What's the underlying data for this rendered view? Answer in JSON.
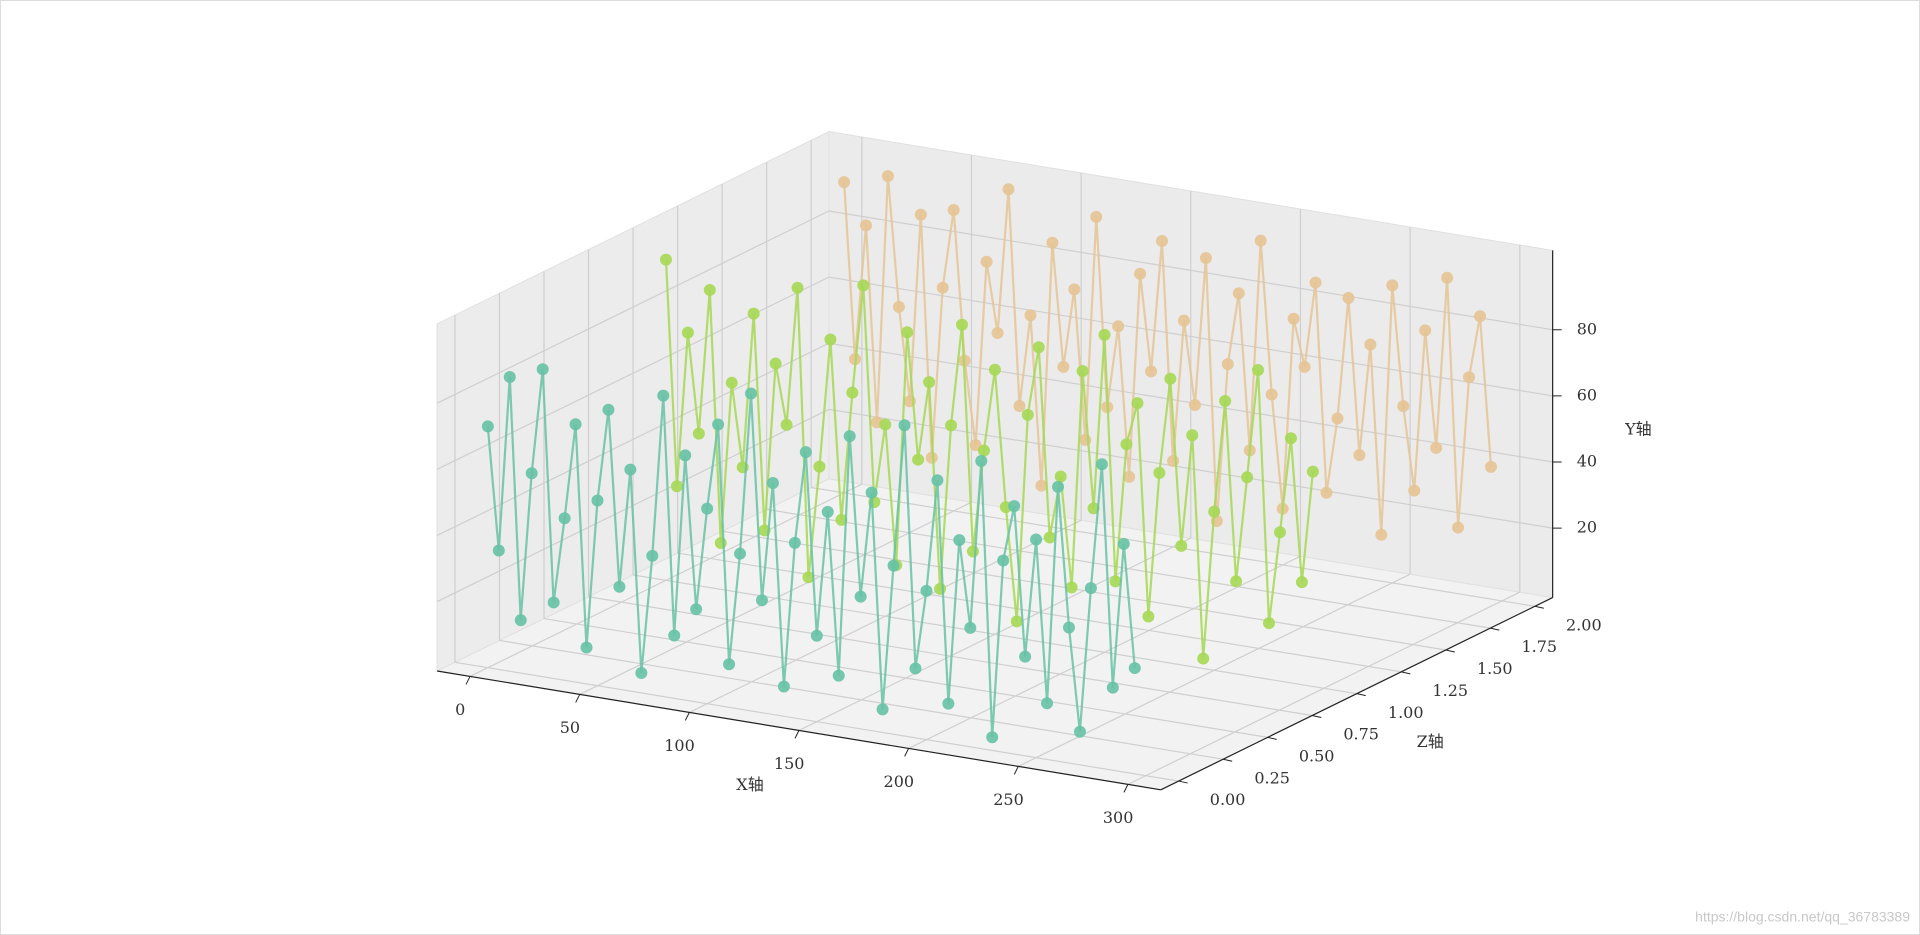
{
  "chart_data": {
    "type": "line3d",
    "xlabel": "X轴",
    "ylabel": "Y轴",
    "zlabel": "Z轴",
    "xlim": [
      -15,
      315
    ],
    "ylim": [
      -1,
      104
    ],
    "zlim": [
      -0.1,
      2.1
    ],
    "xticks": [
      0,
      50,
      100,
      150,
      200,
      250,
      300
    ],
    "yticks": [
      20,
      40,
      60,
      80
    ],
    "zticks": [
      {
        "value": 0,
        "label": "0.00"
      },
      {
        "value": 0.25,
        "label": "0.25"
      },
      {
        "value": 0.5,
        "label": "0.50"
      },
      {
        "value": 0.75,
        "label": "0.75"
      },
      {
        "value": 1,
        "label": "1.00"
      },
      {
        "value": 1.25,
        "label": "1.25"
      },
      {
        "value": 1.5,
        "label": "1.50"
      },
      {
        "value": 1.75,
        "label": "1.75"
      },
      {
        "value": 2,
        "label": "2.00"
      }
    ],
    "grid": true,
    "x": [
      0,
      5,
      10,
      15,
      20,
      25,
      30,
      35,
      40,
      45,
      50,
      55,
      60,
      65,
      70,
      75,
      80,
      85,
      90,
      95,
      100,
      105,
      110,
      115,
      120,
      125,
      130,
      135,
      140,
      145,
      150,
      155,
      160,
      165,
      170,
      175,
      180,
      185,
      190,
      195,
      200,
      205,
      210,
      215,
      220,
      225,
      230,
      235,
      240,
      245,
      250,
      255,
      260,
      265,
      270,
      275,
      280,
      285,
      290,
      295
    ],
    "series": [
      {
        "z": 0,
        "color": "#66c2a5",
        "values": [
          72,
          35,
          88,
          15,
          60,
          92,
          22,
          48,
          77,
          10,
          55,
          83,
          30,
          66,
          5,
          41,
          90,
          18,
          73,
          27,
          58,
          84,
          12,
          46,
          95,
          33,
          69,
          8,
          52,
          80,
          25,
          63,
          14,
          87,
          39,
          71,
          6,
          50,
          93,
          20,
          44,
          78,
          11,
          61,
          35,
          86,
          3,
          57,
          74,
          29,
          65,
          16,
          82,
          40,
          9,
          53,
          91,
          24,
          68,
          31
        ]
      },
      {
        "z": 1,
        "color": "#a6d854",
        "values": [
          96,
          28,
          75,
          45,
          89,
          13,
          62,
          37,
          84,
          19,
          70,
          52,
          94,
          7,
          41,
          80,
          26,
          65,
          98,
          33,
          57,
          15,
          86,
          48,
          72,
          10,
          60,
          91,
          23,
          54,
          79,
          38,
          4,
          67,
          88,
          31,
          50,
          17,
          83,
          42,
          95,
          21,
          63,
          76,
          12,
          56,
          85,
          35,
          69,
          2,
          47,
          81,
          27,
          59,
          92,
          16,
          44,
          73,
          30,
          64
        ]
      },
      {
        "z": 2,
        "color": "#e5c494",
        "values": [
          93,
          40,
          81,
          22,
          97,
          58,
          30,
          87,
          14,
          66,
          90,
          45,
          20,
          76,
          55,
          99,
          34,
          62,
          11,
          85,
          48,
          72,
          27,
          95,
          38,
          63,
          18,
          80,
          51,
          91,
          25,
          68,
          43,
          88,
          9,
          57,
          79,
          32,
          96,
          50,
          16,
          74,
          60,
          86,
          23,
          46,
          83,
          36,
          70,
          13,
          89,
          53,
          28,
          77,
          42,
          94,
          19,
          65,
          84,
          39
        ]
      }
    ],
    "watermark": "https://blog.csdn.net/qq_36783389"
  }
}
